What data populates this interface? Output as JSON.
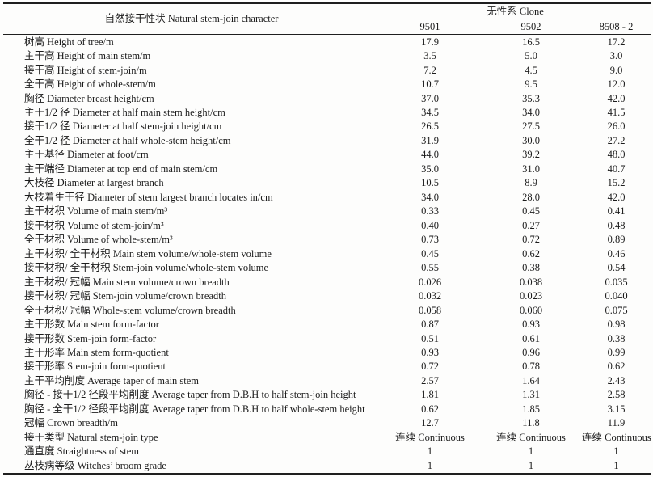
{
  "table": {
    "header": {
      "row_label": "自然接干性状 Natural stem-join character",
      "clone_group": "无性系 Clone",
      "clones": [
        "9501",
        "9502",
        "8508 - 2"
      ]
    },
    "rows": [
      {
        "label": "树高 Height of tree/m",
        "values": [
          "17.9",
          "16.5",
          "17.2"
        ]
      },
      {
        "label": "主干高 Height of main stem/m",
        "values": [
          "3.5",
          "5.0",
          "3.0"
        ]
      },
      {
        "label": "接干高 Height of stem-join/m",
        "values": [
          "7.2",
          "4.5",
          "9.0"
        ]
      },
      {
        "label": "全干高 Height of whole-stem/m",
        "values": [
          "10.7",
          "9.5",
          "12.0"
        ]
      },
      {
        "label": "胸径 Diameter breast height/cm",
        "values": [
          "37.0",
          "35.3",
          "42.0"
        ]
      },
      {
        "label": "主干1/2 径 Diameter at half main stem height/cm",
        "values": [
          "34.5",
          "34.0",
          "41.5"
        ]
      },
      {
        "label": "接干1/2 径 Diameter at half stem-join height/cm",
        "values": [
          "26.5",
          "27.5",
          "26.0"
        ]
      },
      {
        "label": "全干1/2 径 Diameter at half whole-stem height/cm",
        "values": [
          "31.9",
          "30.0",
          "27.2"
        ]
      },
      {
        "label": "主干基径 Diameter at foot/cm",
        "values": [
          "44.0",
          "39.2",
          "48.0"
        ]
      },
      {
        "label": "主干端径 Diameter at top end of main stem/cm",
        "values": [
          "35.0",
          "31.0",
          "40.7"
        ]
      },
      {
        "label": "大枝径 Diameter at largest branch",
        "values": [
          "10.5",
          "8.9",
          "15.2"
        ]
      },
      {
        "label": "大枝着生干径 Diameter of stem largest branch locates in/cm",
        "values": [
          "34.0",
          "28.0",
          "42.0"
        ]
      },
      {
        "label": "主干材积 Volume of main stem/m³",
        "values": [
          "0.33",
          "0.45",
          "0.41"
        ]
      },
      {
        "label": "接干材积 Volume of stem-join/m³",
        "values": [
          "0.40",
          "0.27",
          "0.48"
        ]
      },
      {
        "label": "全干材积 Volume of whole-stem/m³",
        "values": [
          "0.73",
          "0.72",
          "0.89"
        ]
      },
      {
        "label": "主干材积/ 全干材积 Main stem volume/whole-stem volume",
        "values": [
          "0.45",
          "0.62",
          "0.46"
        ]
      },
      {
        "label": "接干材积/ 全干材积 Stem-join volume/whole-stem volume",
        "values": [
          "0.55",
          "0.38",
          "0.54"
        ]
      },
      {
        "label": "主干材积/ 冠幅 Main stem volume/crown breadth",
        "values": [
          "0.026",
          "0.038",
          "0.035"
        ]
      },
      {
        "label": "接干材积/ 冠幅 Stem-join volume/crown breadth",
        "values": [
          "0.032",
          "0.023",
          "0.040"
        ]
      },
      {
        "label": "全干材积/ 冠幅 Whole-stem volume/crown breadth",
        "values": [
          "0.058",
          "0.060",
          "0.075"
        ]
      },
      {
        "label": "主干形数 Main stem form-factor",
        "values": [
          "0.87",
          "0.93",
          "0.98"
        ]
      },
      {
        "label": "接干形数 Stem-join form-factor",
        "values": [
          "0.51",
          "0.61",
          "0.38"
        ]
      },
      {
        "label": "主干形率 Main stem form-quotient",
        "values": [
          "0.93",
          "0.96",
          "0.99"
        ]
      },
      {
        "label": "接干形率 Stem-join form-quotient",
        "values": [
          "0.72",
          "0.78",
          "0.62"
        ]
      },
      {
        "label": "主干平均削度 Average taper of main stem",
        "values": [
          "2.57",
          "1.64",
          "2.43"
        ]
      },
      {
        "label": "胸径 - 接干1/2 径段平均削度 Average taper from D.B.H to half stem-join height",
        "values": [
          "1.81",
          "1.31",
          "2.58"
        ]
      },
      {
        "label": "胸径 - 全干1/2 径段平均削度 Average taper from D.B.H to half whole-stem height",
        "values": [
          "0.62",
          "1.85",
          "3.15"
        ]
      },
      {
        "label": "冠幅 Crown breadth/m",
        "values": [
          "12.7",
          "11.8",
          "11.9"
        ]
      },
      {
        "label": "接干类型 Natural stem-join type",
        "values": [
          "连续 Continuous",
          "连续 Continuous",
          "连续 Continuous"
        ]
      },
      {
        "label": "通直度 Straightness of stem",
        "values": [
          "1",
          "1",
          "1"
        ]
      },
      {
        "label": "丛枝病等级 Witches’ broom grade",
        "values": [
          "1",
          "1",
          "1"
        ]
      }
    ]
  }
}
